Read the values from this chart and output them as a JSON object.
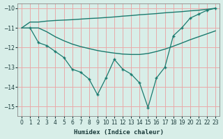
{
  "xlabel": "Humidex (Indice chaleur)",
  "bg_color": "#d8eee8",
  "grid_color": "#e8aaaa",
  "line_color": "#1a7a6e",
  "xlim": [
    -0.5,
    23.5
  ],
  "ylim": [
    -15.5,
    -9.75
  ],
  "yticks": [
    -15,
    -14,
    -13,
    -12,
    -11,
    -10
  ],
  "xticks": [
    0,
    1,
    2,
    3,
    4,
    5,
    6,
    7,
    8,
    9,
    10,
    11,
    12,
    13,
    14,
    15,
    16,
    17,
    18,
    19,
    20,
    21,
    22,
    23
  ],
  "line1_x": [
    0,
    1,
    2,
    3,
    4,
    5,
    6,
    7,
    8,
    9,
    10,
    11,
    12,
    13,
    14,
    15,
    16,
    17,
    18,
    19,
    20,
    21,
    22,
    23
  ],
  "line1_y": [
    -11.0,
    -10.7,
    -10.7,
    -10.65,
    -10.62,
    -10.6,
    -10.58,
    -10.55,
    -10.52,
    -10.5,
    -10.47,
    -10.44,
    -10.4,
    -10.37,
    -10.33,
    -10.3,
    -10.27,
    -10.23,
    -10.2,
    -10.17,
    -10.13,
    -10.1,
    -10.05,
    -10.0
  ],
  "line2_x": [
    0,
    1,
    2,
    3,
    4,
    5,
    6,
    7,
    8,
    9,
    10,
    11,
    12,
    13,
    14,
    15,
    16,
    17,
    18,
    19,
    20,
    21,
    22,
    23
  ],
  "line2_y": [
    -11.0,
    -11.0,
    -11.0,
    -11.2,
    -11.45,
    -11.65,
    -11.82,
    -11.95,
    -12.05,
    -12.15,
    -12.22,
    -12.28,
    -12.33,
    -12.35,
    -12.35,
    -12.3,
    -12.2,
    -12.08,
    -11.93,
    -11.77,
    -11.6,
    -11.45,
    -11.3,
    -11.15
  ],
  "line3_x": [
    1,
    2,
    3,
    4,
    5,
    6,
    7,
    8,
    9,
    10,
    11,
    12,
    13,
    14,
    15,
    16,
    17,
    18,
    19,
    20,
    21,
    22,
    23
  ],
  "line3_y": [
    -11.0,
    -11.75,
    -11.9,
    -12.2,
    -12.5,
    -13.1,
    -13.25,
    -13.6,
    -14.4,
    -13.55,
    -12.6,
    -13.1,
    -13.35,
    -13.8,
    -15.05,
    -13.55,
    -13.0,
    -11.4,
    -11.0,
    -10.5,
    -10.3,
    -10.1,
    -10.0
  ]
}
